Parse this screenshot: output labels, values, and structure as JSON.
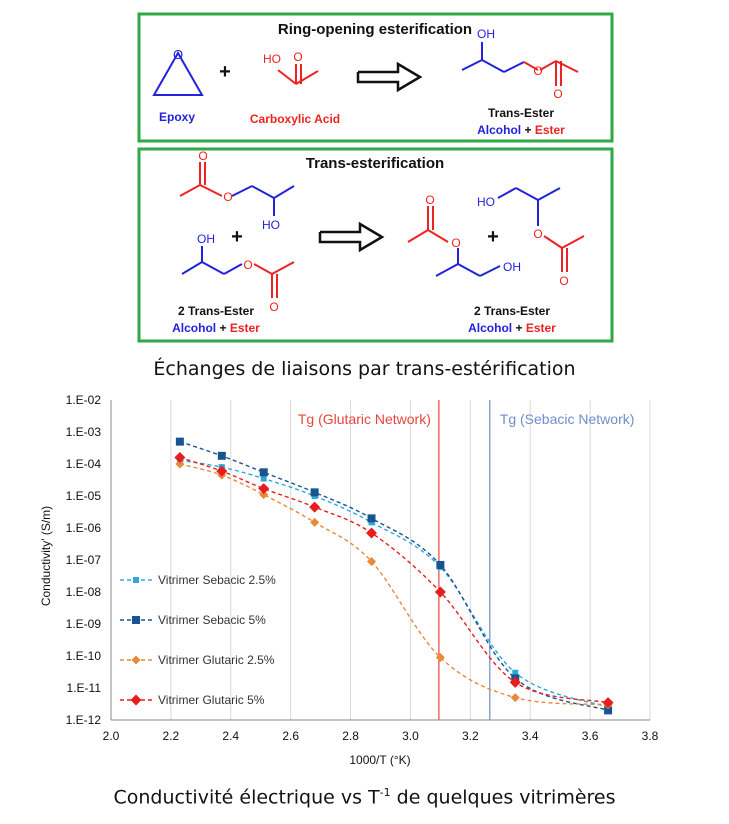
{
  "scheme": {
    "box1": {
      "title": "Ring-opening esterification",
      "epoxy_label": "Epoxy",
      "acid_label": "Carboxylic Acid",
      "product_label": "Trans-Ester",
      "alcohol_word": "Alcohol",
      "plus_word": "+",
      "ester_word": "Ester",
      "ho_text": "HO",
      "oh_text": "OH",
      "o_text": "O"
    },
    "box2": {
      "title": "Trans-esterification",
      "reactant_label": "2 Trans-Ester",
      "product_label": "2 Trans-Ester",
      "alcohol_word": "Alcohol",
      "plus_word": "+",
      "ester_word": "Ester",
      "ho_text": "HO",
      "oh_text": "OH",
      "o_text": "O"
    },
    "colors": {
      "frame": "#2eaa44",
      "blue": "#2222dd",
      "red": "#ee2222"
    }
  },
  "captions": {
    "top": "Échanges de liaisons par trans-estérification",
    "bottom_pre": "Conductivité électrique vs T",
    "bottom_sup": "-1",
    "bottom_post": " de quelques vitrimères"
  },
  "chart_data": {
    "type": "line",
    "xlabel": "1000/T (°K)",
    "ylabel": "Conductivity' (S/m)",
    "xlim": [
      2.0,
      3.8
    ],
    "x_ticks": [
      2.0,
      2.2,
      2.4,
      2.6,
      2.8,
      3.0,
      3.2,
      3.4,
      3.6,
      3.8
    ],
    "x_tick_labels": [
      "2.0",
      "2.2",
      "2.4",
      "2.6",
      "2.8",
      "3.0",
      "3.2",
      "3.4",
      "3.6",
      "3.8"
    ],
    "y_scale": "log",
    "ylim": [
      1e-12,
      0.01
    ],
    "y_tick_labels": [
      "1.E-02",
      "1.E-03",
      "1.E-04",
      "1.E-05",
      "1.E-06",
      "1.E-07",
      "1.E-08",
      "1.E-09",
      "1.E-10",
      "1.E-11",
      "1.E-12"
    ],
    "grid": "vertical",
    "legend_position": "bottom-left",
    "vlines": [
      {
        "x": 3.095,
        "label": "Tg (Glutaric Network)",
        "color": "#e8463c"
      },
      {
        "x": 3.265,
        "label": "Tg (Sebacic Network)",
        "color": "#6f8ec8"
      }
    ],
    "series": [
      {
        "name": "Vitrimer Sebacic 2.5%",
        "color": "#2ea8d8",
        "marker": "square-small",
        "x": [
          2.23,
          2.37,
          2.51,
          2.68,
          2.87,
          3.1,
          3.35,
          3.66
        ],
        "y": [
          0.00013,
          8e-05,
          3.5e-05,
          1e-05,
          1.5e-06,
          6e-08,
          3e-11,
          2.5e-12
        ]
      },
      {
        "name": "Vitrimer Sebacic 5%",
        "color": "#1a5490",
        "marker": "square",
        "x": [
          2.23,
          2.37,
          2.51,
          2.68,
          2.87,
          3.1,
          3.35,
          3.66
        ],
        "y": [
          0.0005,
          0.00018,
          5.5e-05,
          1.3e-05,
          2e-06,
          7e-08,
          2e-11,
          2e-12
        ]
      },
      {
        "name": "Vitrimer Glutaric 2.5%",
        "color": "#e88a3a",
        "marker": "diamond",
        "x": [
          2.23,
          2.37,
          2.51,
          2.68,
          2.87,
          3.1,
          3.35,
          3.66
        ],
        "y": [
          0.0001,
          4.5e-05,
          1.1e-05,
          1.5e-06,
          9e-08,
          9e-11,
          5e-12,
          3e-12
        ]
      },
      {
        "name": "Vitrimer Glutaric 5%",
        "color": "#e61e1e",
        "marker": "diamond-large",
        "x": [
          2.23,
          2.37,
          2.51,
          2.68,
          2.87,
          3.1,
          3.35,
          3.66
        ],
        "y": [
          0.00016,
          6e-05,
          1.7e-05,
          4.5e-06,
          7e-07,
          1e-08,
          1.5e-11,
          3.5e-12
        ]
      }
    ]
  }
}
